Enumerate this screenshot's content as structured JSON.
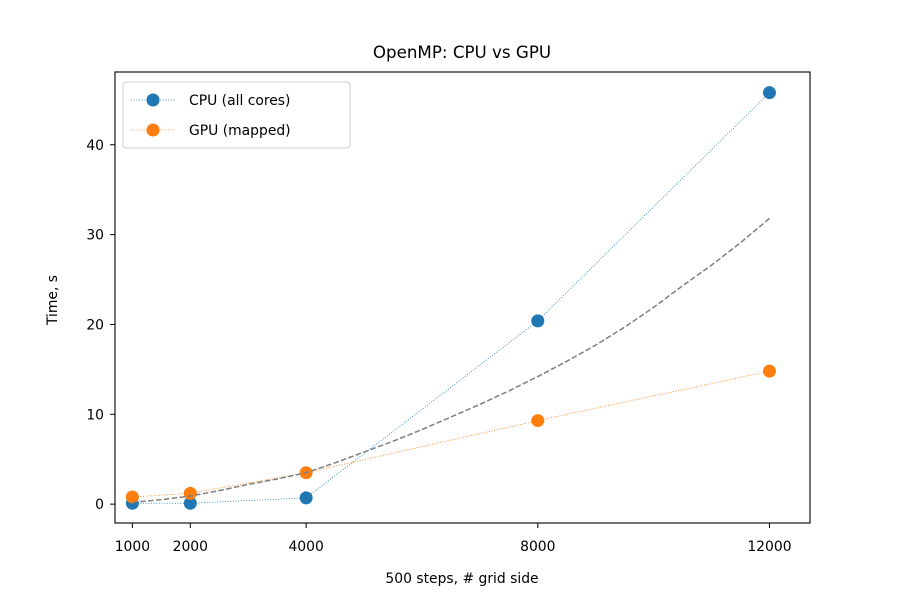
{
  "chart_data": {
    "type": "line",
    "title": "OpenMP: CPU vs GPU",
    "xlabel": "500 steps, # grid side",
    "ylabel": "Time, s",
    "xlim": [
      700,
      12700
    ],
    "ylim": [
      -2.1,
      48.1
    ],
    "x_ticks": [
      1000,
      2000,
      4000,
      8000,
      12000
    ],
    "y_ticks": [
      0,
      10,
      20,
      30,
      40
    ],
    "grid": false,
    "legend_position": "top-left",
    "series": [
      {
        "name": "CPU (all cores)",
        "color": "#1f77b4",
        "line_style": "dotted",
        "marker": "circle",
        "x": [
          1000,
          2000,
          4000,
          8000,
          12000
        ],
        "y": [
          0.1,
          0.1,
          0.7,
          20.4,
          45.8
        ]
      },
      {
        "name": "GPU (mapped)",
        "color": "#ff7f0e",
        "line_style": "dotted",
        "marker": "circle",
        "x": [
          1000,
          2000,
          4000,
          8000,
          12000
        ],
        "y": [
          0.8,
          1.2,
          3.5,
          9.3,
          14.8
        ]
      },
      {
        "color": "#7f7f7f",
        "line_style": "dashed",
        "marker": "none",
        "x": [
          1000,
          1500,
          2000,
          2500,
          3000,
          3500,
          4000,
          4500,
          5000,
          5500,
          6000,
          6500,
          7000,
          7500,
          8000,
          8500,
          9000,
          9500,
          10000,
          10500,
          11000,
          11500,
          12000
        ],
        "y": [
          0.2,
          0.5,
          0.9,
          1.5,
          2.2,
          2.8,
          3.5,
          4.6,
          5.8,
          7.0,
          8.3,
          9.7,
          11.1,
          12.6,
          14.2,
          15.9,
          17.7,
          19.7,
          21.9,
          24.3,
          26.6,
          29.1,
          31.8
        ]
      }
    ]
  }
}
